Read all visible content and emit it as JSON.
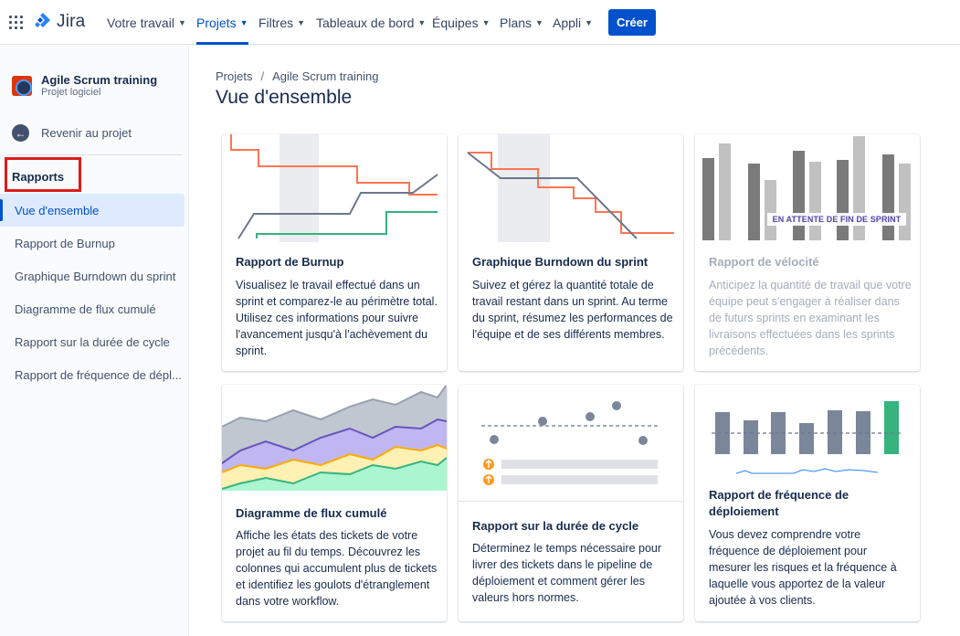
{
  "app": {
    "name": "Jira"
  },
  "topnav": {
    "items": [
      {
        "label": "Votre travail"
      },
      {
        "label": "Projets"
      },
      {
        "label": "Filtres"
      },
      {
        "label": "Tableaux de bord"
      },
      {
        "label": "Équipes"
      },
      {
        "label": "Plans"
      },
      {
        "label": "Appli"
      }
    ],
    "active": "Projets",
    "create_label": "Créer"
  },
  "sidebar": {
    "project_name": "Agile Scrum training",
    "project_type": "Projet logiciel",
    "back_label": "Revenir au projet",
    "section_title": "Rapports",
    "items": [
      {
        "label": "Vue d'ensemble",
        "active": true
      },
      {
        "label": "Rapport de Burnup"
      },
      {
        "label": "Graphique Burndown du sprint"
      },
      {
        "label": "Diagramme de flux cumulé"
      },
      {
        "label": "Rapport sur la durée de cycle"
      },
      {
        "label": "Rapport de fréquence de dépl..."
      }
    ]
  },
  "breadcrumb": {
    "root": "Projets",
    "separator": "/",
    "current": "Agile Scrum training"
  },
  "page_title": "Vue d'ensemble",
  "cards": [
    {
      "title": "Rapport de Burnup",
      "description": "Visualisez le travail effectué dans un sprint et comparez-le au périmètre total. Utilisez ces informations pour suivre l'avancement jusqu'à l'achèvement du sprint."
    },
    {
      "title": "Graphique Burndown du sprint",
      "description": "Suivez et gérez la quantité totale de travail restant dans un sprint. Au terme du sprint, résumez les performances de l'équipe et de ses différents membres."
    },
    {
      "title": "Rapport de vélocité",
      "description": "Anticipez la quantité de travail que votre équipe peut s'engager à réaliser dans de futurs sprints en examinant les livraisons effectuées dans les sprints précédents.",
      "badge": "EN ATTENTE DE FIN DE SPRINT",
      "disabled": true
    },
    {
      "title": "Diagramme de flux cumulé",
      "description": "Affiche les états des tickets de votre projet au fil du temps. Découvrez les colonnes qui accumulent plus de tickets et identifiez les goulots d'étranglement dans votre workflow."
    },
    {
      "title": "Rapport sur la durée de cycle",
      "description": "Déterminez le temps nécessaire pour livrer des tickets dans le pipeline de déploiement et comment gérer les valeurs hors normes."
    },
    {
      "title": "Rapport de fréquence de déploiement",
      "description": "Vous devez comprendre votre fréquence de déploiement pour mesurer les risques et la fréquence à laquelle vous apportez de la valeur ajoutée à vos clients."
    }
  ],
  "colors": {
    "accent": "#0052cc",
    "highlight_box": "#de1b1b",
    "burn_orange": "#ff7452",
    "burn_grey": "#6b778c",
    "burn_green": "#36b37e",
    "velocity_badge": "#5243aa"
  }
}
